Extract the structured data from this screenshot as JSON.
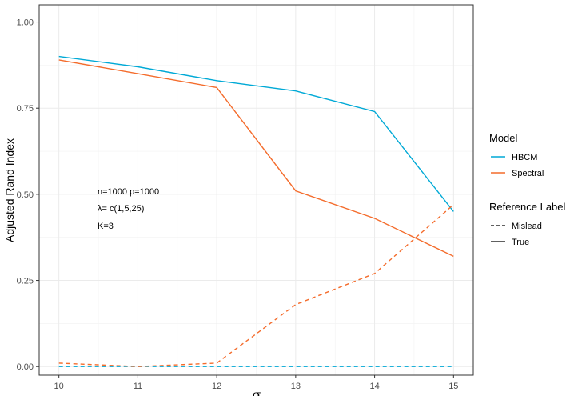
{
  "chart_data": {
    "type": "line",
    "title": "",
    "ylabel": "Adjusted Rand Index",
    "xlabel": "σ",
    "xlim": [
      9.75,
      15.25
    ],
    "ylim": [
      -0.025,
      1.05
    ],
    "x_ticks": [
      10,
      11,
      12,
      13,
      14,
      15
    ],
    "x_tick_labels": [
      "10",
      "11",
      "12",
      "13",
      "14",
      "15"
    ],
    "y_ticks": [
      0,
      0.25,
      0.5,
      0.75,
      1.0
    ],
    "y_tick_labels": [
      "0.00",
      "0.25",
      "0.50",
      "0.75",
      "1.00"
    ],
    "grid": true,
    "legend_placement": "right",
    "colors": {
      "HBCM": "#00a9d6",
      "Spectral": "#f46c2c"
    },
    "series": [
      {
        "name": "HBCM",
        "reference": "True",
        "color": "#00a9d6",
        "dash": false,
        "x": [
          10,
          11,
          12,
          13,
          14,
          15
        ],
        "y": [
          0.9,
          0.87,
          0.83,
          0.8,
          0.74,
          0.45
        ]
      },
      {
        "name": "Spectral",
        "reference": "True",
        "color": "#f46c2c",
        "dash": false,
        "x": [
          10,
          11,
          12,
          13,
          14,
          15
        ],
        "y": [
          0.89,
          0.85,
          0.81,
          0.51,
          0.43,
          0.32
        ]
      },
      {
        "name": "HBCM",
        "reference": "Mislead",
        "color": "#00a9d6",
        "dash": true,
        "x": [
          10,
          11,
          12,
          13,
          14,
          15
        ],
        "y": [
          0.0,
          0.0,
          0.0,
          0.0,
          0.0,
          0.0
        ]
      },
      {
        "name": "Spectral",
        "reference": "Mislead",
        "color": "#f46c2c",
        "dash": true,
        "x": [
          10,
          11,
          12,
          13,
          14,
          15
        ],
        "y": [
          0.01,
          0.0,
          0.01,
          0.18,
          0.27,
          0.47
        ]
      }
    ],
    "annotations": [
      "n=1000 p=1000",
      "λ= c(1,5,25)",
      "K=3"
    ],
    "legend": {
      "model_title": "Model",
      "model_entries": [
        "HBCM",
        "Spectral"
      ],
      "reference_title": "Reference Label",
      "reference_entries": [
        "Mislead",
        "True"
      ]
    }
  }
}
